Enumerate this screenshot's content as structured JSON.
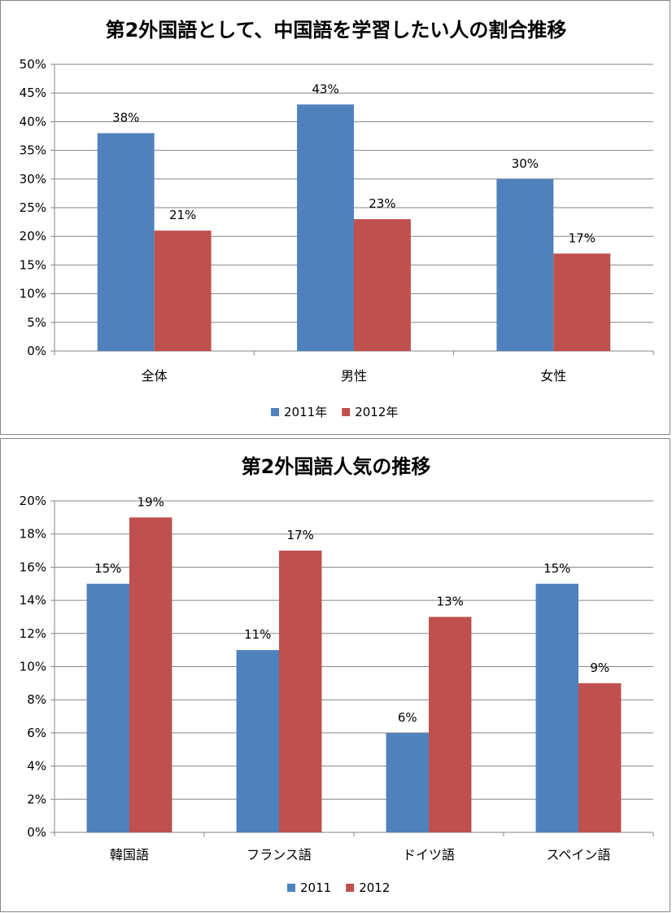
{
  "chart_data": [
    {
      "type": "bar",
      "title": "第2外国語として、中国語を学習したい人の割合推移",
      "categories": [
        "全体",
        "男性",
        "女性"
      ],
      "series": [
        {
          "name": "2011年",
          "values": [
            38,
            43,
            30
          ],
          "labels": [
            "38%",
            "43%",
            "30%"
          ],
          "color": "#4F81BD"
        },
        {
          "name": "2012年",
          "values": [
            21,
            23,
            17
          ],
          "labels": [
            "21%",
            "23%",
            "17%"
          ],
          "color": "#C0504D"
        }
      ],
      "ylim": [
        0,
        50
      ],
      "ytick_step": 5,
      "yticks": [
        "0%",
        "5%",
        "10%",
        "15%",
        "20%",
        "25%",
        "30%",
        "35%",
        "40%",
        "45%",
        "50%"
      ],
      "grid": true,
      "legend": "bottom"
    },
    {
      "type": "bar",
      "title": "第2外国語人気の推移",
      "categories": [
        "韓国語",
        "フランス語",
        "ドイツ語",
        "スペイン語"
      ],
      "series": [
        {
          "name": "2011",
          "values": [
            15,
            11,
            6,
            15
          ],
          "labels": [
            "15%",
            "11%",
            "6%",
            "15%"
          ],
          "color": "#4F81BD"
        },
        {
          "name": "2012",
          "values": [
            19,
            17,
            13,
            9
          ],
          "labels": [
            "19%",
            "17%",
            "13%",
            "9%"
          ],
          "color": "#C0504D"
        }
      ],
      "ylim": [
        0,
        20
      ],
      "ytick_step": 2,
      "yticks": [
        "0%",
        "2%",
        "4%",
        "6%",
        "8%",
        "10%",
        "12%",
        "14%",
        "16%",
        "18%",
        "20%"
      ],
      "grid": true,
      "legend": "bottom"
    }
  ]
}
